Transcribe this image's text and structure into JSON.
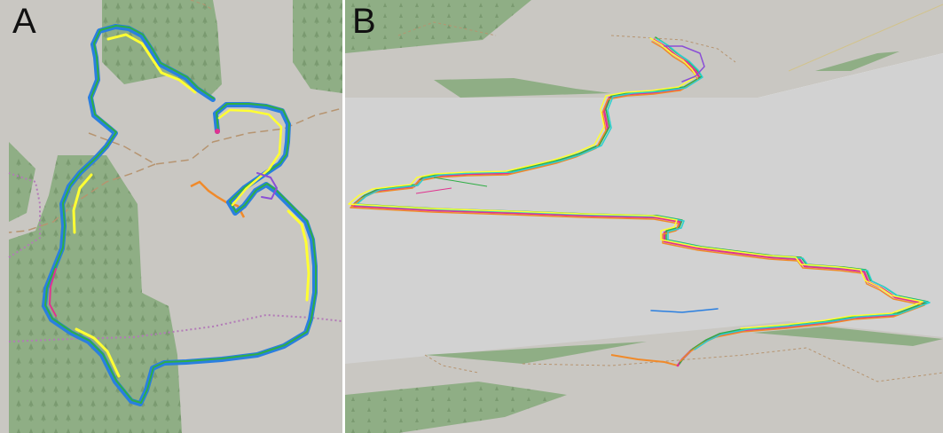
{
  "panels": {
    "a": {
      "label": "A"
    },
    "b": {
      "label": "B"
    }
  },
  "map_colors": {
    "background": "#c9c7c2",
    "forest": "#8fae85",
    "path": "#b69470",
    "boundary": "#b27ab7"
  },
  "track_colors": [
    "#2a7fe0",
    "#ffff33",
    "#8a4fd6",
    "#e0338f",
    "#2fae45",
    "#f08a2a",
    "#2ad0d0",
    "#ff3a3a"
  ]
}
